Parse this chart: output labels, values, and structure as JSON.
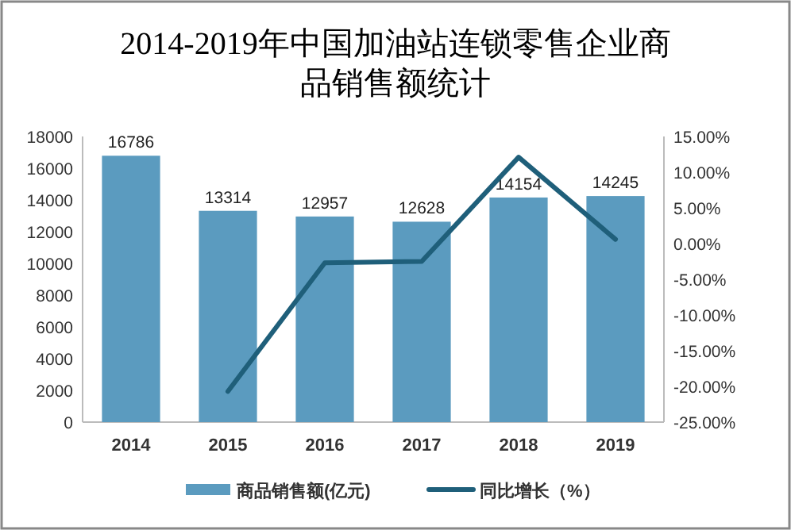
{
  "chart_data": {
    "type": "bar",
    "title": "2014-2019年中国加油站连锁零售企业商品销售额统计",
    "categories": [
      "2014",
      "2015",
      "2016",
      "2017",
      "2018",
      "2019"
    ],
    "series": [
      {
        "name": "商品销售额(亿元)",
        "color": "#5b9bbf",
        "values": [
          16786,
          13314,
          12957,
          12628,
          14154,
          14245
        ],
        "value_labels": [
          "16786",
          "13314",
          "12957",
          "12628",
          "14154",
          "14245"
        ]
      },
      {
        "name": "同比增长（%）",
        "type": "line",
        "axis": "y2",
        "color": "#1f5f7a",
        "values": [
          null,
          -20.7,
          -2.7,
          -2.5,
          12.1,
          0.6
        ]
      }
    ],
    "ylim": [
      0,
      18000
    ],
    "yticks": [
      0,
      2000,
      4000,
      6000,
      8000,
      10000,
      12000,
      14000,
      16000,
      18000
    ],
    "y2lim": [
      -25,
      15
    ],
    "y2ticks": [
      {
        "value": -25,
        "label": "-25.00%"
      },
      {
        "value": -20,
        "label": "-20.00%"
      },
      {
        "value": -15,
        "label": "-15.00%"
      },
      {
        "value": -10,
        "label": "-10.00%"
      },
      {
        "value": -5,
        "label": "-5.00%"
      },
      {
        "value": 0,
        "label": "0.00%"
      },
      {
        "value": 5,
        "label": "5.00%"
      },
      {
        "value": 10,
        "label": "10.00%"
      },
      {
        "value": 15,
        "label": "15.00%"
      }
    ],
    "legend": "bottom",
    "grid": false
  }
}
